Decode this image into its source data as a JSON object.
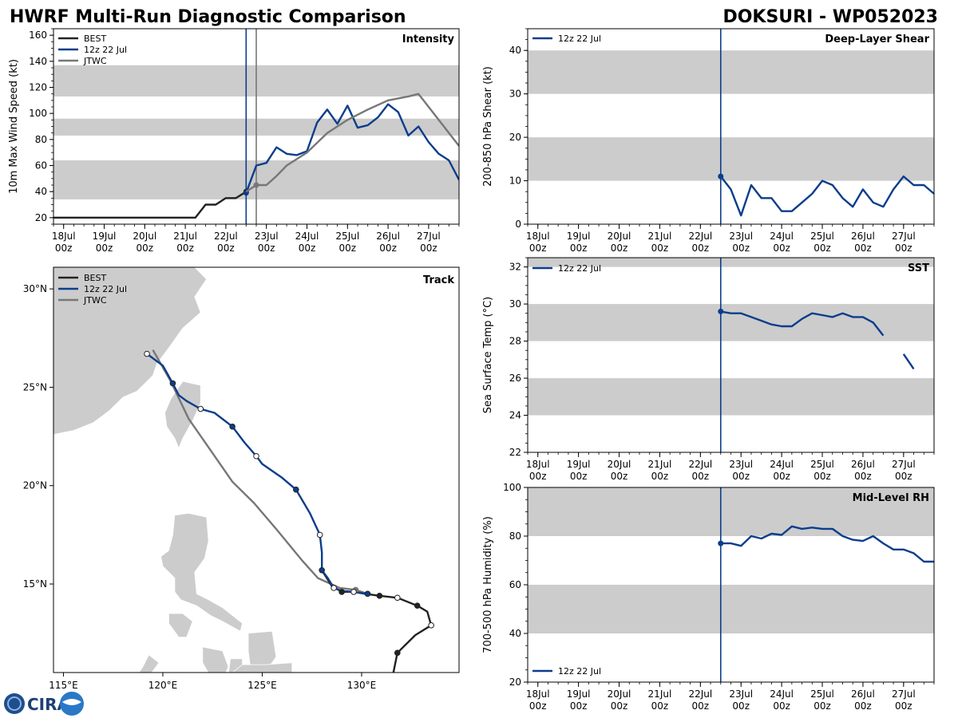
{
  "header": {
    "left_title": "HWRF Multi-Run Diagnostic Comparison",
    "right_title": "DOKSURI - WP052023"
  },
  "logo": {
    "text": "CIRA"
  },
  "colors": {
    "best": "#222222",
    "run": "#0b3d8c",
    "jtwc": "#777777",
    "band": "#cccccc",
    "land": "#cccccc"
  },
  "time_axis": {
    "labels": [
      [
        "18Jul",
        "00z"
      ],
      [
        "19Jul",
        "00z"
      ],
      [
        "20Jul",
        "00z"
      ],
      [
        "21Jul",
        "00z"
      ],
      [
        "22Jul",
        "00z"
      ],
      [
        "23Jul",
        "00z"
      ],
      [
        "24Jul",
        "00z"
      ],
      [
        "25Jul",
        "00z"
      ],
      [
        "26Jul",
        "00z"
      ],
      [
        "27Jul",
        "00z"
      ]
    ]
  },
  "legend_labels": {
    "best": "BEST",
    "run": "12z 22 Jul",
    "jtwc": "JTWC"
  },
  "chart_data": [
    {
      "id": "intensity",
      "type": "line",
      "title": "Intensity",
      "ylabel": "10m Max Wind Speed (kt)",
      "xlim": [
        -0.25,
        9.75
      ],
      "ylim": [
        15,
        165
      ],
      "yticks": [
        20,
        40,
        60,
        80,
        100,
        120,
        140,
        160
      ],
      "bands": [
        [
          34,
          64
        ],
        [
          83,
          96
        ],
        [
          113,
          137
        ]
      ],
      "vlines": [
        {
          "x": 4.5,
          "series": "run"
        },
        {
          "x": 4.75,
          "series": "jtwc"
        }
      ],
      "series": [
        {
          "name": "BEST",
          "key": "best",
          "x": [
            -0.25,
            0,
            0.25,
            0.5,
            0.75,
            1,
            1.25,
            1.5,
            1.75,
            2,
            2.25,
            2.5,
            2.75,
            3,
            3.25,
            3.5,
            3.75,
            4,
            4.25,
            4.5
          ],
          "y": [
            20,
            20,
            20,
            20,
            20,
            20,
            20,
            20,
            20,
            20,
            20,
            20,
            20,
            20,
            20,
            30,
            30,
            35,
            35,
            40
          ],
          "marker_last": true
        },
        {
          "name": "12z 22 Jul",
          "key": "run",
          "x": [
            4.5,
            4.75,
            5,
            5.25,
            5.5,
            5.75,
            6,
            6.25,
            6.5,
            6.75,
            7,
            7.25,
            7.5,
            7.75,
            8,
            8.25,
            8.5,
            8.75,
            9,
            9.25,
            9.5,
            9.75
          ],
          "y": [
            39,
            60,
            62,
            74,
            69,
            68,
            71,
            93,
            103,
            92,
            106,
            89,
            91,
            97,
            107,
            101,
            83,
            90,
            78,
            69,
            64,
            49
          ],
          "marker_first": true
        },
        {
          "name": "JTWC",
          "key": "jtwc",
          "x": [
            4.5,
            4.75,
            5,
            5.25,
            5.5,
            6,
            6.5,
            7,
            7.5,
            8,
            8.5,
            8.75,
            9,
            9.75
          ],
          "y": [
            40,
            45,
            45,
            52,
            60,
            70,
            85,
            95,
            103,
            110,
            113,
            115,
            105,
            75
          ],
          "marker_point": 1
        }
      ]
    },
    {
      "id": "shear",
      "type": "line",
      "title": "Deep-Layer Shear",
      "ylabel": "200-850 hPa Shear (kt)",
      "xlim": [
        -0.25,
        9.75
      ],
      "ylim": [
        0,
        45
      ],
      "yticks": [
        0,
        10,
        20,
        30,
        40
      ],
      "bands": [
        [
          10,
          20
        ],
        [
          30,
          40
        ]
      ],
      "vlines": [
        {
          "x": 4.5,
          "series": "run"
        }
      ],
      "series": [
        {
          "name": "12z 22 Jul",
          "key": "run",
          "x": [
            4.5,
            4.75,
            5,
            5.25,
            5.5,
            5.75,
            6,
            6.25,
            6.5,
            6.75,
            7,
            7.25,
            7.5,
            7.75,
            8,
            8.25,
            8.5,
            8.75,
            9,
            9.25,
            9.5,
            9.75
          ],
          "y": [
            11,
            8,
            2,
            9,
            6,
            6,
            3,
            3,
            5,
            7,
            10,
            9,
            6,
            4,
            8,
            5,
            4,
            8,
            11,
            9,
            9,
            7
          ],
          "marker_first": true
        }
      ]
    },
    {
      "id": "sst",
      "type": "line",
      "title": "SST",
      "ylabel": "Sea Surface Temp (°C)",
      "xlim": [
        -0.25,
        9.75
      ],
      "ylim": [
        22,
        32.5
      ],
      "yticks": [
        22,
        24,
        26,
        28,
        30,
        32
      ],
      "bands": [
        [
          24,
          26
        ],
        [
          28,
          30
        ],
        [
          32,
          34
        ]
      ],
      "vlines": [
        {
          "x": 4.5,
          "series": "run"
        }
      ],
      "series": [
        {
          "name": "12z 22 Jul",
          "key": "run",
          "x": [
            4.5,
            4.62,
            4.75,
            5,
            5.25,
            5.5,
            5.75,
            6,
            6.25,
            6.5,
            6.75,
            7,
            7.25,
            7.5,
            7.75,
            8,
            8.25,
            8.5
          ],
          "y": [
            29.6,
            29.55,
            29.5,
            29.5,
            29.3,
            29.1,
            28.9,
            28.8,
            28.8,
            29.2,
            29.5,
            29.4,
            29.3,
            29.5,
            29.3,
            29.3,
            29.0,
            28.3
          ],
          "marker_first": true
        },
        {
          "name": "12z 22 Jul (cont.)",
          "key": "run",
          "x": [
            9.0,
            9.25
          ],
          "y": [
            27.3,
            26.5
          ]
        }
      ]
    },
    {
      "id": "rh",
      "type": "line",
      "title": "Mid-Level RH",
      "ylabel": "700-500 hPa Humidity (%)",
      "xlim": [
        -0.25,
        9.75
      ],
      "ylim": [
        20,
        100
      ],
      "yticks": [
        20,
        40,
        60,
        80,
        100
      ],
      "bands": [
        [
          40,
          60
        ],
        [
          80,
          100
        ]
      ],
      "vlines": [
        {
          "x": 4.5,
          "series": "run"
        }
      ],
      "series": [
        {
          "name": "12z 22 Jul",
          "key": "run",
          "x": [
            4.5,
            4.75,
            5,
            5.25,
            5.5,
            5.75,
            6,
            6.25,
            6.5,
            6.75,
            7,
            7.25,
            7.5,
            7.75,
            8,
            8.25,
            8.5,
            8.75,
            9,
            9.25,
            9.5,
            9.75
          ],
          "y": [
            77,
            77,
            76,
            80,
            79,
            81,
            80.5,
            84,
            83,
            83.5,
            83,
            83,
            80,
            78.5,
            78,
            80,
            77,
            74.5,
            74.5,
            73,
            69.5,
            69.5
          ],
          "marker_first": true
        }
      ]
    },
    {
      "id": "track",
      "type": "scatter",
      "title": "Track",
      "xlim": [
        114.5,
        134.9
      ],
      "ylim": [
        10.5,
        31.1
      ],
      "xticks": [
        115,
        120,
        125,
        130
      ],
      "xtick_labels": [
        "115°E",
        "120°E",
        "125°E",
        "130°E"
      ],
      "yticks": [
        15,
        20,
        25,
        30
      ],
      "ytick_labels": [
        "15°N",
        "20°N",
        "25°N",
        "30°N"
      ],
      "series": [
        {
          "name": "BEST",
          "key": "best",
          "lon": [
            131.6,
            131.8,
            132.7,
            133.5,
            133.3,
            132.8,
            131.8,
            130.9,
            130.2,
            129.6,
            129.0,
            128.5,
            128.0
          ],
          "lat": [
            10.5,
            11.5,
            12.4,
            12.9,
            13.6,
            13.9,
            14.3,
            14.4,
            14.5,
            14.6,
            14.6,
            14.9,
            15.7
          ],
          "markers": [
            [
              131.8,
              11.5,
              "filled"
            ],
            [
              133.5,
              12.9,
              "open"
            ],
            [
              132.8,
              13.9,
              "filled"
            ],
            [
              131.8,
              14.3,
              "open"
            ],
            [
              130.9,
              14.4,
              "filled"
            ],
            [
              129.6,
              14.6,
              "open"
            ],
            [
              129.0,
              14.6,
              "filled"
            ]
          ]
        },
        {
          "name": "12z 22 Jul",
          "key": "run",
          "lon": [
            130.3,
            129.6,
            129.0,
            128.6,
            128.3,
            128.0,
            128.0,
            127.9,
            127.4,
            126.7,
            126.0,
            125.0,
            124.7,
            124.1,
            123.5,
            122.6,
            121.9,
            121.2,
            120.8,
            120.5,
            120.0,
            119.2
          ],
          "lat": [
            14.5,
            14.6,
            14.65,
            14.8,
            15.3,
            15.7,
            16.6,
            17.5,
            18.6,
            19.8,
            20.4,
            21.1,
            21.5,
            22.2,
            23.0,
            23.7,
            23.9,
            24.3,
            24.6,
            25.2,
            26.1,
            26.7
          ],
          "markers": [
            [
              130.3,
              14.5,
              "filled"
            ],
            [
              128.6,
              14.8,
              "open"
            ],
            [
              128.0,
              15.7,
              "filled"
            ],
            [
              127.9,
              17.5,
              "open"
            ],
            [
              126.7,
              19.8,
              "filled"
            ],
            [
              124.7,
              21.5,
              "open"
            ],
            [
              123.5,
              23.0,
              "filled"
            ],
            [
              121.9,
              23.9,
              "open"
            ],
            [
              120.5,
              25.2,
              "filled"
            ],
            [
              119.2,
              26.7,
              "open"
            ]
          ]
        },
        {
          "name": "JTWC",
          "key": "jtwc",
          "lon": [
            130.3,
            129.7,
            128.9,
            127.8,
            127.0,
            125.7,
            124.6,
            123.5,
            122.4,
            121.3,
            120.4,
            119.5
          ],
          "lat": [
            14.5,
            14.7,
            14.8,
            15.3,
            16.2,
            17.8,
            19.1,
            20.2,
            21.8,
            23.4,
            25.3,
            26.9
          ],
          "markers": [
            [
              129.7,
              14.7,
              "gray"
            ]
          ]
        }
      ]
    }
  ]
}
